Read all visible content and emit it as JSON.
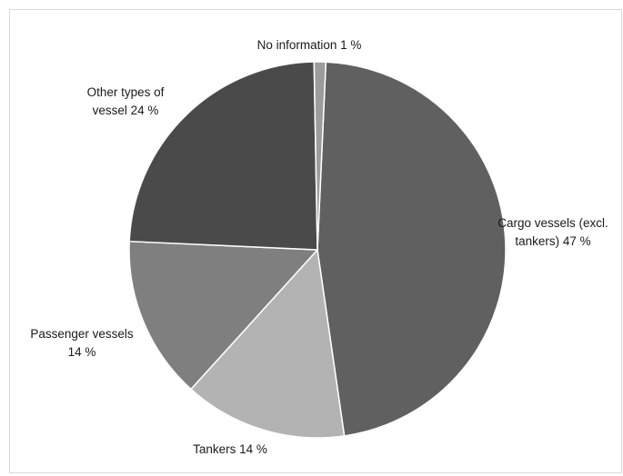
{
  "chart_data": {
    "type": "pie",
    "title": "",
    "slices": [
      {
        "label_lines": [
          "Cargo vessels (excl.",
          "tankers) 47 %"
        ],
        "value": 47,
        "color": "#606060"
      },
      {
        "label_lines": [
          "Tankers 14 %"
        ],
        "value": 14,
        "color": "#b3b3b3"
      },
      {
        "label_lines": [
          "Passenger vessels",
          "14 %"
        ],
        "value": 14,
        "color": "#7f7f7f"
      },
      {
        "label_lines": [
          "Other types of",
          "vessel 24 %"
        ],
        "value": 24,
        "color": "#4a4a4a"
      },
      {
        "label_lines": [
          "No information 1 %"
        ],
        "value": 1,
        "color": "#9c9c9c"
      }
    ],
    "legend": "none"
  }
}
